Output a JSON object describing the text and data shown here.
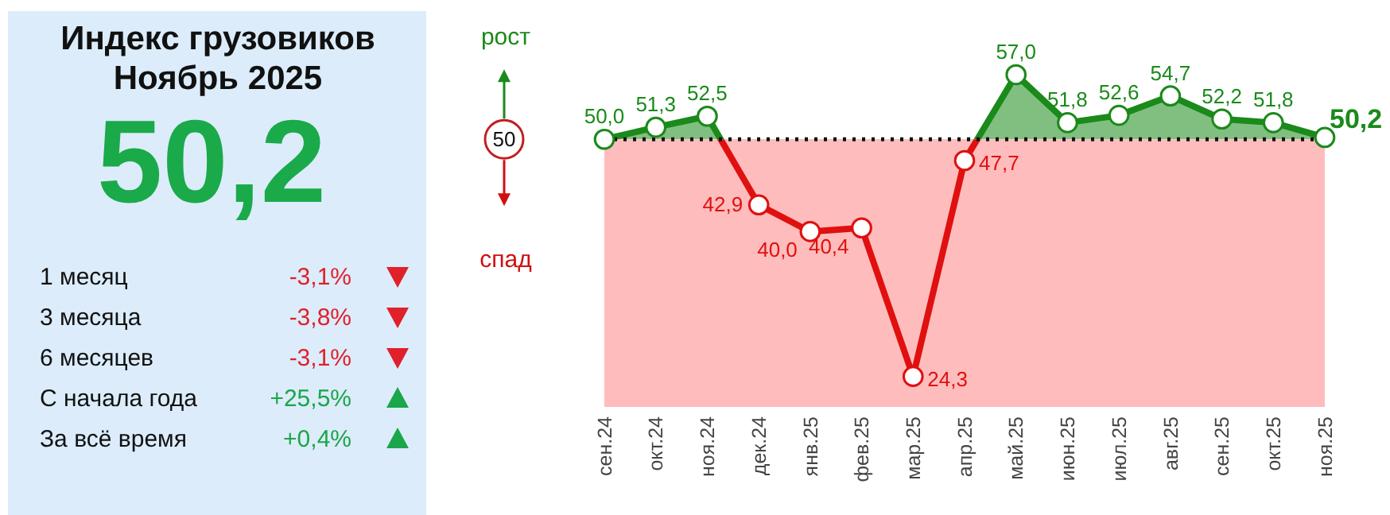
{
  "chart_data": [
    {
      "type": "other",
      "title": "Индекс грузовиков",
      "subtitle": "Ноябрь 2025",
      "annotations": [
        "50,2"
      ],
      "categories": [
        "1 месяц",
        "3 месяца",
        "6 месяцев",
        "С начала года",
        "За всё время"
      ],
      "values": [
        -3.1,
        -3.8,
        -3.1,
        25.5,
        0.4
      ],
      "value_labels": [
        "-3,1%",
        "-3,8%",
        "-3,1%",
        "+25,5%",
        "+0,4%"
      ]
    },
    {
      "type": "line",
      "annotations": [
        "рост",
        "спад"
      ],
      "categories": [
        "сен.24",
        "окт.24",
        "ноя.24",
        "дек.24",
        "янв.25",
        "фев.25",
        "мар.25",
        "апр.25",
        "май.25",
        "июн.25",
        "июл.25",
        "авг.25",
        "сен.25",
        "окт.25",
        "ноя.25"
      ],
      "series": [
        {
          "color": "#1a8a1a",
          "values": [
            50.0,
            51.3,
            52.5,
            42.9,
            40.0,
            40.4,
            24.3,
            47.7,
            57.0,
            51.8,
            52.6,
            54.7,
            52.2,
            51.8,
            50.2
          ],
          "colors": [
            "#1a8a1a",
            "#1a8a1a",
            "#1a8a1a",
            "#e01010",
            "#e01010",
            "#e01010",
            "#e01010",
            "#e01010",
            "#1a8a1a",
            "#1a8a1a",
            "#1a8a1a",
            "#1a8a1a",
            "#1a8a1a",
            "#1a8a1a",
            "#1a8a1a"
          ],
          "value_labels": [
            "50,0",
            "51,3",
            "52,5",
            "42,9",
            "40,0",
            "40,4",
            "24,3",
            "47,7",
            "57,0",
            "51,8",
            "52,6",
            "54,7",
            "52,2",
            "51,8",
            "50,2"
          ]
        }
      ],
      "tick_labels": "x",
      "marker": "circle",
      "ref_lines": [
        {
          "axis": "y",
          "value": 50,
          "label": "50",
          "color": "#111111",
          "line_style": "dotted"
        }
      ],
      "bands": [
        {
          "axis": "y",
          "from": 21,
          "to": 50,
          "color": "#ffbcbc"
        }
      ]
    }
  ]
}
